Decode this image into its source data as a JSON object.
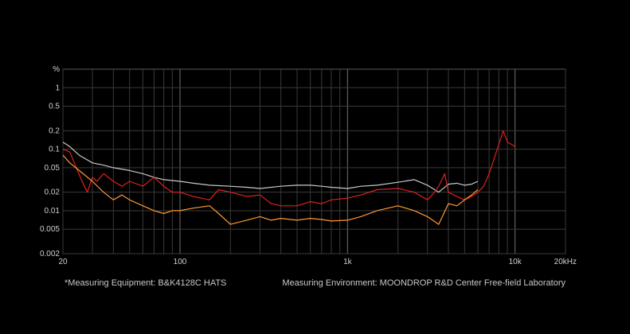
{
  "chart_data": {
    "type": "line",
    "title": "",
    "xlabel": "",
    "ylabel": "",
    "x_scale": "log",
    "y_scale": "log",
    "xlim": [
      20,
      20000
    ],
    "ylim": [
      0.002,
      2
    ],
    "grid": true,
    "y_unit_label": "%",
    "x_unit_label": "kHz",
    "x_ticks": [
      {
        "value": 20,
        "label": "20"
      },
      {
        "value": 100,
        "label": "100"
      },
      {
        "value": 1000,
        "label": "1k"
      },
      {
        "value": 10000,
        "label": "10k"
      },
      {
        "value": 20000,
        "label": "20kHz"
      }
    ],
    "y_ticks": [
      {
        "value": 1,
        "label": "1"
      },
      {
        "value": 0.5,
        "label": "0.5"
      },
      {
        "value": 0.2,
        "label": "0.2"
      },
      {
        "value": 0.1,
        "label": "0.1"
      },
      {
        "value": 0.05,
        "label": "0.05"
      },
      {
        "value": 0.02,
        "label": "0.02"
      },
      {
        "value": 0.01,
        "label": "0.01"
      },
      {
        "value": 0.005,
        "label": "0.005"
      },
      {
        "value": 0.002,
        "label": "0.002"
      }
    ],
    "series": [
      {
        "color": "#c8c8c8",
        "x": [
          20,
          22,
          25,
          30,
          35,
          40,
          50,
          60,
          70,
          80,
          100,
          120,
          150,
          200,
          250,
          300,
          400,
          500,
          600,
          700,
          800,
          1000,
          1200,
          1500,
          2000,
          2500,
          3000,
          3500,
          4000,
          4500,
          5000,
          5500,
          6000
        ],
        "y": [
          0.13,
          0.11,
          0.08,
          0.06,
          0.055,
          0.05,
          0.045,
          0.04,
          0.035,
          0.032,
          0.03,
          0.028,
          0.026,
          0.025,
          0.024,
          0.023,
          0.025,
          0.026,
          0.026,
          0.025,
          0.024,
          0.023,
          0.025,
          0.026,
          0.029,
          0.032,
          0.026,
          0.02,
          0.027,
          0.028,
          0.026,
          0.027,
          0.03
        ]
      },
      {
        "color": "#e02020",
        "x": [
          20,
          22,
          24,
          26,
          28,
          30,
          32,
          35,
          40,
          45,
          50,
          60,
          70,
          80,
          90,
          100,
          120,
          150,
          170,
          200,
          250,
          300,
          350,
          400,
          500,
          600,
          700,
          800,
          1000,
          1200,
          1500,
          2000,
          2500,
          3000,
          3200,
          3500,
          3800,
          4000,
          4500,
          5000,
          5500,
          6000,
          6500,
          7000,
          7500,
          8000,
          8500,
          9000,
          9500,
          10000
        ],
        "y": [
          0.1,
          0.09,
          0.05,
          0.03,
          0.02,
          0.035,
          0.03,
          0.04,
          0.03,
          0.025,
          0.03,
          0.025,
          0.035,
          0.025,
          0.02,
          0.02,
          0.017,
          0.015,
          0.022,
          0.02,
          0.017,
          0.018,
          0.013,
          0.012,
          0.012,
          0.014,
          0.013,
          0.015,
          0.016,
          0.018,
          0.022,
          0.023,
          0.02,
          0.015,
          0.018,
          0.025,
          0.04,
          0.02,
          0.017,
          0.015,
          0.017,
          0.02,
          0.025,
          0.04,
          0.07,
          0.12,
          0.2,
          0.13,
          0.12,
          0.11
        ]
      },
      {
        "color": "#ff9933",
        "x": [
          20,
          22,
          25,
          30,
          35,
          40,
          45,
          50,
          60,
          70,
          80,
          90,
          100,
          120,
          150,
          170,
          200,
          250,
          300,
          350,
          400,
          500,
          600,
          700,
          800,
          1000,
          1200,
          1500,
          2000,
          2500,
          3000,
          3500,
          4000,
          4500,
          5000,
          5500,
          6000
        ],
        "y": [
          0.08,
          0.06,
          0.045,
          0.03,
          0.02,
          0.015,
          0.018,
          0.015,
          0.012,
          0.01,
          0.009,
          0.01,
          0.01,
          0.011,
          0.012,
          0.009,
          0.006,
          0.007,
          0.008,
          0.007,
          0.0075,
          0.007,
          0.0075,
          0.0072,
          0.0068,
          0.007,
          0.008,
          0.01,
          0.012,
          0.01,
          0.008,
          0.006,
          0.013,
          0.012,
          0.015,
          0.018,
          0.022
        ]
      }
    ]
  },
  "footer": {
    "left": "*Measuring Equipment: B&K4128C HATS",
    "right": "Measuring Environment: MOONDROP R&D Center Free-field Laboratory"
  }
}
